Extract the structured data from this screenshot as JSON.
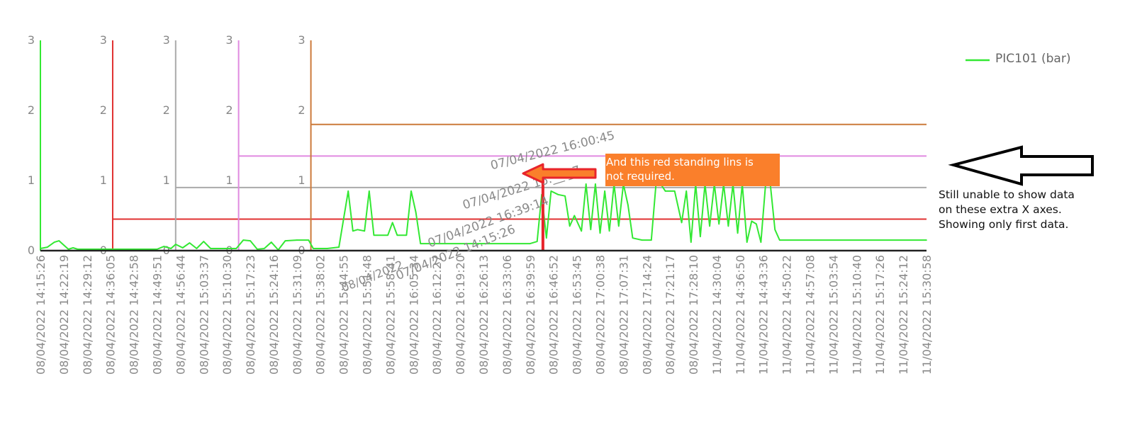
{
  "chart_data": {
    "type": "line",
    "title": "",
    "xlabel": "",
    "ylabel": "",
    "ylim": [
      0,
      3
    ],
    "y_ticks": [
      "0",
      "1",
      "2",
      "3"
    ],
    "legend": {
      "position": "top-right",
      "entries": [
        {
          "name": "PIC101 (bar)",
          "color": "#33e833"
        }
      ]
    },
    "x_categories": [
      "08/04/2022 14:15:26",
      "08/04/2022 14:22:19",
      "08/04/2022 14:29:12",
      "08/04/2022 14:36:05",
      "08/04/2022 14:42:58",
      "08/04/2022 14:49:51",
      "08/04/2022 14:56:44",
      "08/04/2022 15:03:37",
      "08/04/2022 15:10:30",
      "08/04/2022 15:17:23",
      "08/04/2022 15:24:16",
      "08/04/2022 15:31:09",
      "08/04/2022 15:38:02",
      "08/04/2022 15:44:55",
      "08/04/2022 15:51:48",
      "08/04/2022 15:58:41",
      "08/04/2022 16:05:34",
      "08/04/2022 16:12:27",
      "08/04/2022 16:19:20",
      "08/04/2022 16:26:13",
      "08/04/2022 16:33:06",
      "08/04/2022 16:39:59",
      "08/04/2022 16:46:52",
      "08/04/2022 16:53:45",
      "08/04/2022 17:00:38",
      "08/04/2022 17:07:31",
      "08/04/2022 17:14:24",
      "08/04/2022 17:21:17",
      "08/04/2022 17:28:10",
      "11/04/2022 14:30:04",
      "11/04/2022 14:36:50",
      "11/04/2022 14:43:36",
      "11/04/2022 14:50:22",
      "11/04/2022 14:57:08",
      "11/04/2022 15:03:54",
      "11/04/2022 15:10:40",
      "11/04/2022 15:17:26",
      "11/04/2022 15:24:12",
      "11/04/2022 15:30:58"
    ],
    "extra_axis_labels": [
      "07/04/2022 16:00:45",
      "07/04/2022 16:__:_7",
      "07/04/2022 16:39:14",
      "07/04/2022 14:15:26",
      "08/04/2022"
    ],
    "y_axes": [
      {
        "color": "#33e833",
        "at_category": 0
      },
      {
        "color": "#e03030",
        "at_category": 3.1
      },
      {
        "color": "#aaaaaa",
        "at_category": 5.8
      },
      {
        "color": "#e08ae0",
        "at_category": 8.5
      },
      {
        "color": "#cc7a3a",
        "at_category": 11.6
      }
    ],
    "flat_series": [
      {
        "color": "#e03030",
        "value": 0.45,
        "from_category": 3.1
      },
      {
        "color": "#aaaaaa",
        "value": 0.9,
        "from_category": 5.8
      },
      {
        "color": "#e08ae0",
        "value": 1.35,
        "from_category": 8.5
      },
      {
        "color": "#cc7a3a",
        "value": 1.8,
        "from_category": 11.6
      }
    ],
    "series": [
      {
        "name": "PIC101 (bar)",
        "color": "#33e833",
        "points": [
          [
            0,
            0.03
          ],
          [
            0.3,
            0.05
          ],
          [
            0.6,
            0.12
          ],
          [
            0.8,
            0.14
          ],
          [
            1.0,
            0.08
          ],
          [
            1.2,
            0.02
          ],
          [
            1.4,
            0.04
          ],
          [
            1.6,
            0.02
          ],
          [
            2.5,
            0.02
          ],
          [
            3.0,
            0.02
          ],
          [
            4.0,
            0.02
          ],
          [
            5.0,
            0.02
          ],
          [
            5.3,
            0.06
          ],
          [
            5.6,
            0.03
          ],
          [
            5.8,
            0.09
          ],
          [
            6.1,
            0.04
          ],
          [
            6.4,
            0.11
          ],
          [
            6.7,
            0.03
          ],
          [
            7.0,
            0.13
          ],
          [
            7.3,
            0.03
          ],
          [
            8.4,
            0.03
          ],
          [
            8.7,
            0.15
          ],
          [
            9.0,
            0.14
          ],
          [
            9.3,
            0.02
          ],
          [
            9.6,
            0.03
          ],
          [
            9.9,
            0.12
          ],
          [
            10.2,
            0.01
          ],
          [
            10.5,
            0.14
          ],
          [
            11.0,
            0.15
          ],
          [
            11.5,
            0.15
          ],
          [
            11.7,
            0.03
          ],
          [
            12.3,
            0.03
          ],
          [
            12.8,
            0.05
          ],
          [
            13.2,
            0.85
          ],
          [
            13.4,
            0.28
          ],
          [
            13.6,
            0.3
          ],
          [
            13.9,
            0.28
          ],
          [
            14.1,
            0.85
          ],
          [
            14.3,
            0.22
          ],
          [
            14.9,
            0.22
          ],
          [
            15.1,
            0.4
          ],
          [
            15.3,
            0.22
          ],
          [
            15.7,
            0.22
          ],
          [
            15.9,
            0.85
          ],
          [
            16.1,
            0.55
          ],
          [
            16.3,
            0.1
          ],
          [
            18.0,
            0.1
          ],
          [
            19.0,
            0.1
          ],
          [
            20.0,
            0.1
          ],
          [
            21.0,
            0.1
          ],
          [
            21.3,
            0.13
          ],
          [
            21.5,
            0.8
          ],
          [
            21.7,
            0.18
          ],
          [
            21.9,
            0.85
          ],
          [
            22.2,
            0.8
          ],
          [
            22.5,
            0.78
          ],
          [
            22.7,
            0.35
          ],
          [
            22.9,
            0.5
          ],
          [
            23.2,
            0.28
          ],
          [
            23.4,
            0.95
          ],
          [
            23.6,
            0.3
          ],
          [
            23.8,
            0.95
          ],
          [
            24.0,
            0.25
          ],
          [
            24.2,
            0.85
          ],
          [
            24.4,
            0.28
          ],
          [
            24.6,
            0.95
          ],
          [
            24.8,
            0.35
          ],
          [
            25.0,
            0.95
          ],
          [
            25.2,
            0.65
          ],
          [
            25.4,
            0.18
          ],
          [
            25.8,
            0.15
          ],
          [
            26.2,
            0.15
          ],
          [
            26.4,
            0.95
          ],
          [
            26.6,
            0.95
          ],
          [
            26.8,
            0.85
          ],
          [
            27.2,
            0.85
          ],
          [
            27.5,
            0.4
          ],
          [
            27.7,
            0.85
          ],
          [
            27.9,
            0.12
          ],
          [
            28.1,
            0.95
          ],
          [
            28.3,
            0.2
          ],
          [
            28.5,
            0.95
          ],
          [
            28.7,
            0.35
          ],
          [
            28.9,
            0.95
          ],
          [
            29.1,
            0.38
          ],
          [
            29.3,
            0.95
          ],
          [
            29.5,
            0.35
          ],
          [
            29.7,
            0.95
          ],
          [
            29.9,
            0.25
          ],
          [
            30.1,
            0.95
          ],
          [
            30.3,
            0.12
          ],
          [
            30.5,
            0.42
          ],
          [
            30.7,
            0.38
          ],
          [
            30.9,
            0.12
          ],
          [
            31.1,
            0.95
          ],
          [
            31.3,
            0.95
          ],
          [
            31.5,
            0.3
          ],
          [
            31.7,
            0.15
          ],
          [
            38,
            0.15
          ]
        ]
      }
    ],
    "highlight_line": {
      "color": "#e8242b",
      "at_category": 21.55,
      "value": 1.18
    }
  },
  "annotations": {
    "note_box_text": "And this red standing lins is\nnot required.",
    "side_note_text": "Still unable to show data\non these extra X axes.\nShowing only first data."
  }
}
